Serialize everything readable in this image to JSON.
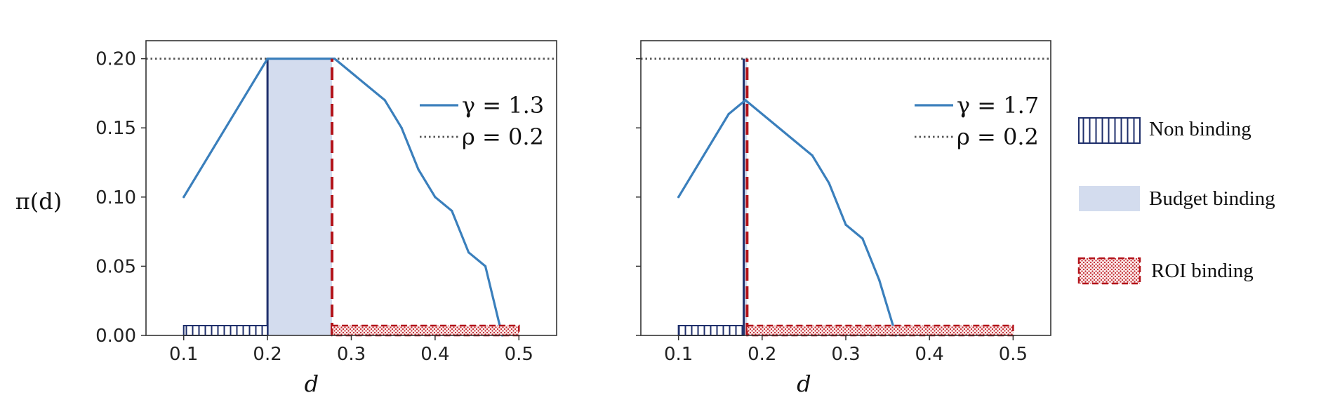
{
  "y_axis_label": "π(d)",
  "legend": {
    "non_binding": "Non binding",
    "budget_binding": "Budget binding",
    "roi_binding": "ROI binding"
  },
  "colors": {
    "line": "#3a7fbc",
    "rho_line": "#555555",
    "budget_fill": "#d3dcee",
    "non_binding": "#1f2f6b",
    "roi": "#b3141b"
  },
  "chart_data": [
    {
      "type": "line",
      "xlabel": "d",
      "xlim": [
        0.055,
        0.545
      ],
      "ylim": [
        0.0,
        0.213
      ],
      "xticks": [
        "0.1",
        "0.2",
        "0.3",
        "0.4",
        "0.5"
      ],
      "yticks": [
        "0.00",
        "0.05",
        "0.10",
        "0.15",
        "0.20"
      ],
      "series": [
        {
          "name": "γ = 1.3",
          "x": [
            0.1,
            0.2,
            0.28,
            0.34,
            0.36,
            0.38,
            0.4,
            0.42,
            0.44,
            0.46,
            0.48
          ],
          "y": [
            0.1,
            0.2,
            0.2,
            0.17,
            0.15,
            0.12,
            0.1,
            0.09,
            0.06,
            0.05,
            0.0
          ]
        },
        {
          "name": "ρ = 0.2",
          "style": "dotted",
          "y": 0.2
        }
      ],
      "regions": {
        "non_binding": [
          0.1,
          0.2
        ],
        "budget_binding": [
          0.2,
          0.277
        ],
        "roi_binding": [
          0.277,
          0.5
        ]
      },
      "vlines": {
        "solid": 0.2,
        "dashed": 0.277
      }
    },
    {
      "type": "line",
      "xlabel": "d",
      "xlim": [
        0.055,
        0.545
      ],
      "ylim": [
        0.0,
        0.213
      ],
      "xticks": [
        "0.1",
        "0.2",
        "0.3",
        "0.4",
        "0.5"
      ],
      "yticks": [
        "0.00",
        "0.05",
        "0.10",
        "0.15",
        "0.20"
      ],
      "series": [
        {
          "name": "γ = 1.7",
          "x": [
            0.1,
            0.16,
            0.18,
            0.26,
            0.28,
            0.3,
            0.32,
            0.34,
            0.36
          ],
          "y": [
            0.1,
            0.16,
            0.17,
            0.13,
            0.11,
            0.08,
            0.07,
            0.04,
            0.0
          ]
        },
        {
          "name": "ρ = 0.2",
          "style": "dotted",
          "y": 0.2
        }
      ],
      "regions": {
        "non_binding": [
          0.1,
          0.178
        ],
        "budget_binding": [
          0.178,
          0.182
        ],
        "roi_binding": [
          0.182,
          0.5
        ]
      },
      "vlines": {
        "solid": 0.178,
        "dashed": 0.182
      }
    }
  ]
}
